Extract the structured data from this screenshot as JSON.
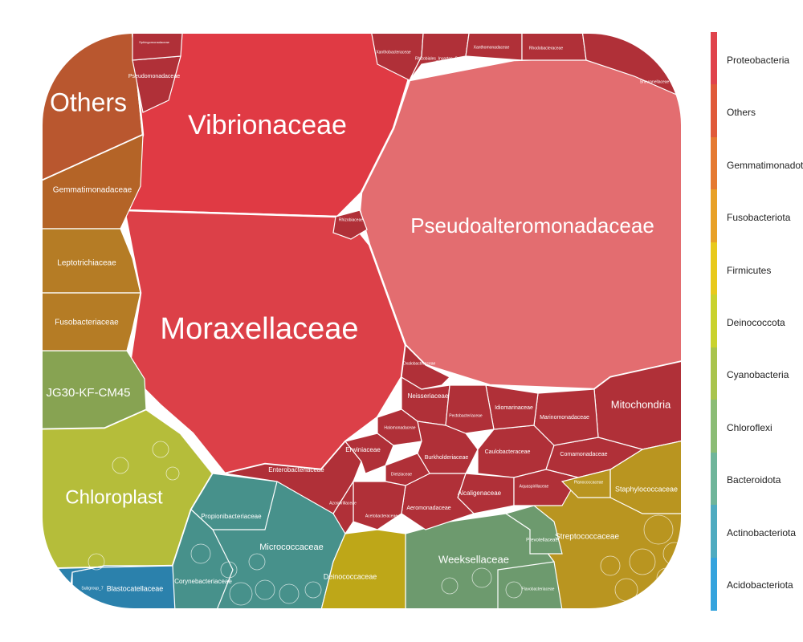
{
  "chart_data": {
    "type": "voronoi-treemap",
    "title": "",
    "legend": {
      "position": "right",
      "items": [
        {
          "name": "Proteobacteria",
          "color": "#e0434c"
        },
        {
          "name": "Others",
          "color": "#e05a3a"
        },
        {
          "name": "Gemmatimonadota",
          "color": "#e57a32"
        },
        {
          "name": "Fusobacteriota",
          "color": "#e8a128"
        },
        {
          "name": "Firmicutes",
          "color": "#e8c91c"
        },
        {
          "name": "Deinococcota",
          "color": "#c9d22e"
        },
        {
          "name": "Cyanobacteria",
          "color": "#a9c44d"
        },
        {
          "name": "Chloroflexi",
          "color": "#8bbc75"
        },
        {
          "name": "Bacteroidota",
          "color": "#6fb59a"
        },
        {
          "name": "Actinobacteriota",
          "color": "#4fabc0"
        },
        {
          "name": "Acidobacteriota",
          "color": "#35a3dd"
        }
      ]
    },
    "cells": [
      {
        "label": "Others",
        "phylum": "Others",
        "color": "#b9572f",
        "size": "large"
      },
      {
        "label": "Vibrionaceae",
        "phylum": "Proteobacteria",
        "color": "#e03a44",
        "size": "large"
      },
      {
        "label": "Pseudoalteromonadaceae",
        "phylum": "Proteobacteria",
        "color": "#e36d70",
        "size": "large"
      },
      {
        "label": "Moraxellaceae",
        "phylum": "Proteobacteria",
        "color": "#dc4048",
        "size": "large"
      },
      {
        "label": "Chloroplast",
        "phylum": "Cyanobacteria",
        "color": "#b5bd3a",
        "size": "large"
      },
      {
        "label": "JG30-KF-CM45",
        "phylum": "Chloroflexi",
        "color": "#87a352",
        "size": "medium"
      },
      {
        "label": "Gemmatimonadaceae",
        "phylum": "Gemmatimonadota",
        "color": "#b46427",
        "size": "small"
      },
      {
        "label": "Leptotrichiaceae",
        "phylum": "Fusobacteriota",
        "color": "#b57c25",
        "size": "small"
      },
      {
        "label": "Fusobacteriaceae",
        "phylum": "Fusobacteriota",
        "color": "#b57c25",
        "size": "small"
      },
      {
        "label": "Mitochondria",
        "phylum": "Proteobacteria",
        "color": "#b03038",
        "size": "medium"
      },
      {
        "label": "Micrococcaceae",
        "phylum": "Actinobacteriota",
        "color": "#47918b",
        "size": "medium"
      },
      {
        "label": "Propionibacteriaceae",
        "phylum": "Actinobacteriota",
        "color": "#47918b",
        "size": "small"
      },
      {
        "label": "Corynebacteriaceae",
        "phylum": "Actinobacteriota",
        "color": "#47918b",
        "size": "small"
      },
      {
        "label": "Weeksellaceae",
        "phylum": "Bacteroidota",
        "color": "#6d9a6e",
        "size": "medium"
      },
      {
        "label": "Streptococcaceae",
        "phylum": "Firmicutes",
        "color": "#b99520",
        "size": "medium"
      },
      {
        "label": "Staphylococcaceae",
        "phylum": "Firmicutes",
        "color": "#b99520",
        "size": "small"
      },
      {
        "label": "Deinococcaceae",
        "phylum": "Deinococcota",
        "color": "#bea718",
        "size": "small"
      },
      {
        "label": "Blastocatellaceae",
        "phylum": "Acidobacteriota",
        "color": "#2b81ac",
        "size": "small"
      },
      {
        "label": "Enterobacteriaceae",
        "phylum": "Proteobacteria",
        "color": "#b03038",
        "size": "small"
      },
      {
        "label": "Neisseriaceae",
        "phylum": "Proteobacteria",
        "color": "#b03038",
        "size": "small"
      },
      {
        "label": "Burkholderiaceae",
        "phylum": "Proteobacteria",
        "color": "#b03038",
        "size": "small"
      },
      {
        "label": "Caulobacteraceae",
        "phylum": "Proteobacteria",
        "color": "#b03038",
        "size": "small"
      },
      {
        "label": "Alcaligenaceae",
        "phylum": "Proteobacteria",
        "color": "#b03038",
        "size": "small"
      },
      {
        "label": "Aeromonadaceae",
        "phylum": "Proteobacteria",
        "color": "#b03038",
        "size": "small"
      },
      {
        "label": "Comamonadaceae",
        "phylum": "Proteobacteria",
        "color": "#b03038",
        "size": "small"
      },
      {
        "label": "Marinomonadaceae",
        "phylum": "Proteobacteria",
        "color": "#b03038",
        "size": "small"
      },
      {
        "label": "Idiomarinaceae",
        "phylum": "Proteobacteria",
        "color": "#b03038",
        "size": "small"
      },
      {
        "label": "Erwiniaceae",
        "phylum": "Proteobacteria",
        "color": "#b03038",
        "size": "small"
      },
      {
        "label": "Pseudomonadaceae",
        "phylum": "Proteobacteria",
        "color": "#b03038",
        "size": "small"
      },
      {
        "label": "Rhizobiaceae",
        "phylum": "Proteobacteria",
        "color": "#b03038",
        "size": "tiny"
      },
      {
        "label": "Oxalobacteraceae",
        "phylum": "Proteobacteria",
        "color": "#b03038",
        "size": "tiny"
      },
      {
        "label": "Halomonadaceae",
        "phylum": "Proteobacteria",
        "color": "#b03038",
        "size": "tiny"
      },
      {
        "label": "Pectobacteriaceae",
        "phylum": "Proteobacteria",
        "color": "#b03038",
        "size": "tiny"
      },
      {
        "label": "Dietziaceae",
        "phylum": "Proteobacteria",
        "color": "#b03038",
        "size": "tiny"
      },
      {
        "label": "Acetobacteraceae",
        "phylum": "Proteobacteria",
        "color": "#b03038",
        "size": "tiny"
      },
      {
        "label": "Azospirillaceae",
        "phylum": "Proteobacteria",
        "color": "#b03038",
        "size": "tiny"
      },
      {
        "label": "Aquaspirillaceae",
        "phylum": "Proteobacteria",
        "color": "#b03038",
        "size": "tiny"
      },
      {
        "label": "Xanthobacteraceae",
        "phylum": "Proteobacteria",
        "color": "#b03038",
        "size": "tiny"
      },
      {
        "label": "Rhizobiales_Incertae_Sedis",
        "phylum": "Proteobacteria",
        "color": "#b03038",
        "size": "tiny"
      },
      {
        "label": "Xanthomonadaceae",
        "phylum": "Proteobacteria",
        "color": "#b03038",
        "size": "tiny"
      },
      {
        "label": "Rhodobacteraceae",
        "phylum": "Proteobacteria",
        "color": "#b03038",
        "size": "tiny"
      },
      {
        "label": "Shewanellaceae",
        "phylum": "Proteobacteria",
        "color": "#b03038",
        "size": "tiny"
      },
      {
        "label": "Sphingomonadaceae",
        "phylum": "Proteobacteria",
        "color": "#b03038",
        "size": "tiny"
      },
      {
        "label": "Planococcaceae",
        "phylum": "Firmicutes",
        "color": "#b99520",
        "size": "tiny"
      },
      {
        "label": "Prevotellaceae",
        "phylum": "Bacteroidota",
        "color": "#6d9a6e",
        "size": "tiny"
      },
      {
        "label": "Flavobacteriaceae",
        "phylum": "Bacteroidota",
        "color": "#6d9a6e",
        "size": "tiny"
      },
      {
        "label": "Subgroup_7",
        "phylum": "Acidobacteriota",
        "color": "#2b81ac",
        "size": "tiny"
      }
    ]
  }
}
